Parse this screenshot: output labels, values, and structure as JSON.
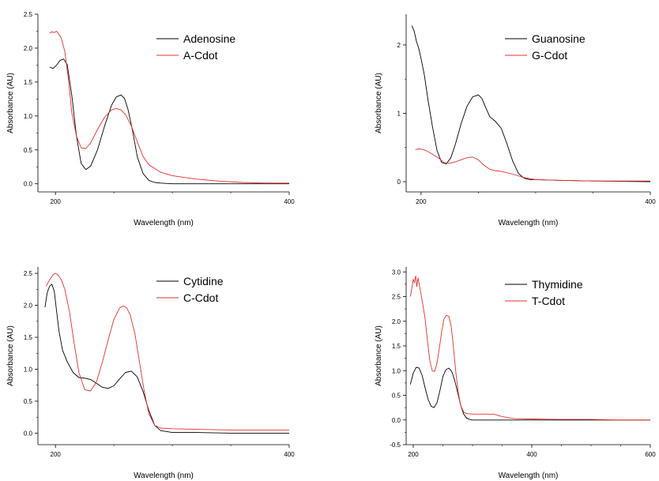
{
  "chart_data": [
    {
      "type": "line",
      "xlabel": "Wavelength (nm)",
      "ylabel": "Absorbance (AU)",
      "xlim": [
        185,
        400
      ],
      "ylim": [
        -0.12,
        2.5
      ],
      "xticks": [
        200,
        400
      ],
      "yticks": [
        0.0,
        0.5,
        1.0,
        1.5,
        2.0,
        2.5
      ],
      "ytick_labels": [
        "0.0",
        "0.5",
        "1.0",
        "1.5",
        "2.0",
        "2.5"
      ],
      "legend_position": "top-right",
      "series": [
        {
          "name": "Adenosine",
          "color": "#000000",
          "x": [
            195,
            198,
            201,
            204,
            207,
            210,
            214,
            218,
            222,
            226,
            230,
            236,
            242,
            248,
            252,
            256,
            259,
            262,
            266,
            270,
            275,
            280,
            285,
            290,
            300,
            320,
            350,
            400
          ],
          "y": [
            1.72,
            1.7,
            1.75,
            1.82,
            1.84,
            1.76,
            1.3,
            0.7,
            0.3,
            0.21,
            0.26,
            0.5,
            0.85,
            1.16,
            1.28,
            1.31,
            1.26,
            1.1,
            0.78,
            0.4,
            0.15,
            0.05,
            0.02,
            0.01,
            0.0,
            0.0,
            0.0,
            0.0
          ]
        },
        {
          "name": "A-Cdot",
          "color": "#e8302c",
          "x": [
            195,
            197,
            199,
            201,
            203,
            205,
            208,
            211,
            214,
            218,
            222,
            226,
            230,
            236,
            242,
            248,
            252,
            256,
            260,
            265,
            270,
            275,
            280,
            290,
            300,
            320,
            340,
            360,
            380,
            400
          ],
          "y": [
            2.22,
            2.24,
            2.23,
            2.25,
            2.2,
            2.15,
            1.95,
            1.55,
            1.05,
            0.7,
            0.53,
            0.52,
            0.6,
            0.8,
            0.98,
            1.09,
            1.11,
            1.09,
            1.02,
            0.85,
            0.62,
            0.4,
            0.28,
            0.17,
            0.12,
            0.07,
            0.04,
            0.02,
            0.01,
            0.01
          ]
        }
      ]
    },
    {
      "type": "line",
      "xlabel": "Wavelength (nm)",
      "ylabel": "Absorbance (AU)",
      "xlim": [
        187,
        400
      ],
      "ylim": [
        -0.15,
        2.45
      ],
      "xticks": [
        200,
        400
      ],
      "yticks": [
        0,
        1,
        2
      ],
      "ytick_labels": [
        "0",
        "1",
        "2"
      ],
      "legend_position": "top-right",
      "series": [
        {
          "name": "Guanosine",
          "color": "#000000",
          "x": [
            192,
            194,
            196,
            198,
            200,
            203,
            206,
            210,
            214,
            218,
            222,
            226,
            230,
            235,
            240,
            245,
            250,
            253,
            256,
            260,
            265,
            270,
            275,
            280,
            285,
            290,
            295,
            300,
            320,
            350,
            400
          ],
          "y": [
            2.28,
            2.2,
            2.05,
            1.95,
            1.8,
            1.55,
            1.2,
            0.8,
            0.45,
            0.28,
            0.26,
            0.35,
            0.55,
            0.85,
            1.1,
            1.24,
            1.27,
            1.22,
            1.1,
            0.95,
            0.88,
            0.78,
            0.55,
            0.3,
            0.12,
            0.05,
            0.03,
            0.03,
            0.02,
            0.01,
            0.0
          ]
        },
        {
          "name": "G-Cdot",
          "color": "#e8302c",
          "x": [
            195,
            198,
            202,
            206,
            210,
            215,
            220,
            225,
            230,
            235,
            240,
            245,
            250,
            255,
            260,
            265,
            270,
            280,
            290,
            300,
            320,
            350,
            400
          ],
          "y": [
            0.47,
            0.48,
            0.47,
            0.44,
            0.4,
            0.35,
            0.28,
            0.27,
            0.29,
            0.32,
            0.35,
            0.36,
            0.32,
            0.24,
            0.18,
            0.16,
            0.15,
            0.11,
            0.06,
            0.03,
            0.02,
            0.01,
            0.01
          ]
        }
      ]
    },
    {
      "type": "line",
      "xlabel": "Wavelength (nm)",
      "ylabel": "Absorbance (AU)",
      "xlim": [
        185,
        400
      ],
      "ylim": [
        -0.18,
        2.6
      ],
      "xticks": [
        200,
        400
      ],
      "yticks": [
        0.0,
        0.5,
        1.0,
        1.5,
        2.0,
        2.5
      ],
      "ytick_labels": [
        "0.0",
        "0.5",
        "1.0",
        "1.5",
        "2.0",
        "2.5"
      ],
      "legend_position": "top-right",
      "series": [
        {
          "name": "Cytidine",
          "color": "#000000",
          "x": [
            191,
            193,
            195,
            197,
            199,
            201,
            203,
            206,
            210,
            215,
            220,
            225,
            230,
            235,
            240,
            245,
            250,
            255,
            260,
            265,
            270,
            275,
            280,
            285,
            290,
            300,
            320,
            350,
            400
          ],
          "y": [
            1.97,
            2.2,
            2.3,
            2.33,
            2.22,
            1.9,
            1.6,
            1.3,
            1.12,
            0.95,
            0.87,
            0.86,
            0.84,
            0.78,
            0.72,
            0.7,
            0.74,
            0.85,
            0.95,
            0.97,
            0.88,
            0.65,
            0.35,
            0.12,
            0.04,
            0.01,
            0.01,
            0.0,
            0.0
          ]
        },
        {
          "name": "C-Cdot",
          "color": "#e8302c",
          "x": [
            192,
            195,
            198,
            200,
            202,
            205,
            208,
            212,
            216,
            220,
            225,
            230,
            235,
            240,
            245,
            250,
            255,
            258,
            261,
            264,
            268,
            272,
            276,
            280,
            285,
            290,
            300,
            320,
            350,
            400
          ],
          "y": [
            2.3,
            2.4,
            2.48,
            2.5,
            2.48,
            2.4,
            2.25,
            1.9,
            1.4,
            0.95,
            0.68,
            0.66,
            0.8,
            1.1,
            1.45,
            1.78,
            1.96,
            1.99,
            1.96,
            1.85,
            1.55,
            1.1,
            0.65,
            0.3,
            0.12,
            0.08,
            0.07,
            0.06,
            0.05,
            0.05
          ]
        }
      ]
    },
    {
      "type": "line",
      "xlabel": "Wavelength (nm)",
      "ylabel": "Absorbance (AU)",
      "xlim": [
        188,
        600
      ],
      "ylim": [
        -0.5,
        3.1
      ],
      "xticks": [
        200,
        400,
        600
      ],
      "yticks": [
        -0.5,
        0.0,
        0.5,
        1.0,
        1.5,
        2.0,
        2.5,
        3.0
      ],
      "ytick_labels": [
        "-0.5",
        "0.0",
        "0.5",
        "1.0",
        "1.5",
        "2.0",
        "2.5",
        "3.0"
      ],
      "legend_position": "top-right",
      "series": [
        {
          "name": "Thymidine",
          "color": "#000000",
          "x": [
            195,
            200,
            205,
            210,
            215,
            220,
            225,
            230,
            235,
            240,
            245,
            250,
            255,
            260,
            265,
            270,
            275,
            280,
            285,
            290,
            295,
            300,
            320,
            350,
            400,
            450,
            500,
            550,
            600
          ],
          "y": [
            0.72,
            0.95,
            1.07,
            1.05,
            0.9,
            0.65,
            0.42,
            0.28,
            0.25,
            0.35,
            0.6,
            0.88,
            1.02,
            1.05,
            0.98,
            0.8,
            0.55,
            0.3,
            0.12,
            0.04,
            0.01,
            0.0,
            0.0,
            0.0,
            0.0,
            0.0,
            0.0,
            0.0,
            0.0
          ]
        },
        {
          "name": "T-Cdot",
          "color": "#e8302c",
          "x": [
            195,
            198,
            200,
            202,
            204,
            206,
            208,
            210,
            213,
            216,
            220,
            224,
            228,
            232,
            236,
            240,
            244,
            248,
            252,
            256,
            260,
            264,
            268,
            272,
            276,
            280,
            285,
            290,
            300,
            320,
            335,
            350,
            370,
            400,
            450,
            500,
            550,
            600
          ],
          "y": [
            2.5,
            2.7,
            2.85,
            2.78,
            2.92,
            2.7,
            2.88,
            2.75,
            2.55,
            2.35,
            2.05,
            1.6,
            1.2,
            1.0,
            0.98,
            1.15,
            1.45,
            1.8,
            2.05,
            2.12,
            2.1,
            1.9,
            1.45,
            0.95,
            0.55,
            0.3,
            0.16,
            0.13,
            0.12,
            0.12,
            0.12,
            0.07,
            0.03,
            0.02,
            0.01,
            0.01,
            0.0,
            0.0
          ]
        }
      ]
    }
  ]
}
